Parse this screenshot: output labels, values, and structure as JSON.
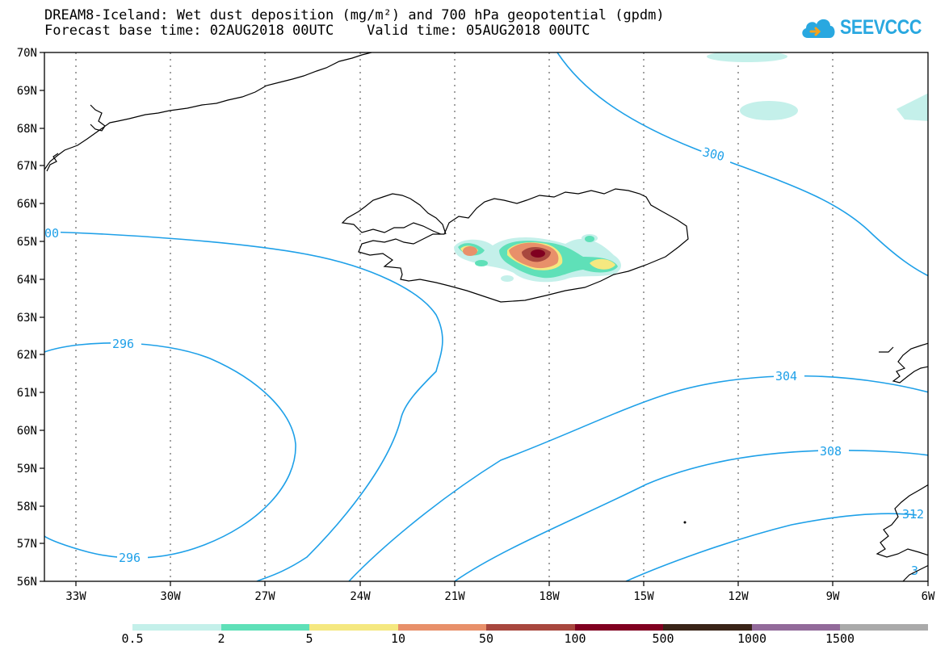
{
  "header": {
    "title_line1": "DREAM8-Iceland: Wet dust deposition (mg/m²) and 700 hPa geopotential (gpdm)",
    "title_line2": "Forecast base time: 02AUG2018 00UTC    Valid time: 05AUG2018 00UTC"
  },
  "logo": {
    "text": "SEEVCCC",
    "icon": "cloud-icon",
    "color": "#29a8e0"
  },
  "map": {
    "lon_ticks": [
      "33W",
      "30W",
      "27W",
      "24W",
      "21W",
      "18W",
      "15W",
      "12W",
      "9W",
      "6W"
    ],
    "lat_ticks": [
      "70N",
      "69N",
      "68N",
      "67N",
      "66N",
      "65N",
      "64N",
      "63N",
      "62N",
      "61N",
      "60N",
      "59N",
      "58N",
      "57N",
      "56N"
    ],
    "lon_range": [
      -34,
      -6
    ],
    "lat_range": [
      56,
      70
    ],
    "grid": "dotted",
    "contour_color": "#1ea0e8",
    "contour_labels": [
      "300",
      "00",
      "296",
      "296",
      "304",
      "308",
      "312",
      "3"
    ]
  },
  "legend": {
    "levels": [
      "0.5",
      "2",
      "5",
      "10",
      "50",
      "100",
      "500",
      "1000",
      "1500"
    ],
    "colors": [
      "#c4f0ea",
      "#5fe0b8",
      "#f5e880",
      "#e8906a",
      "#a8473e",
      "#800020",
      "#3a2418",
      "#926a9a",
      "#aaaaaa"
    ]
  }
}
